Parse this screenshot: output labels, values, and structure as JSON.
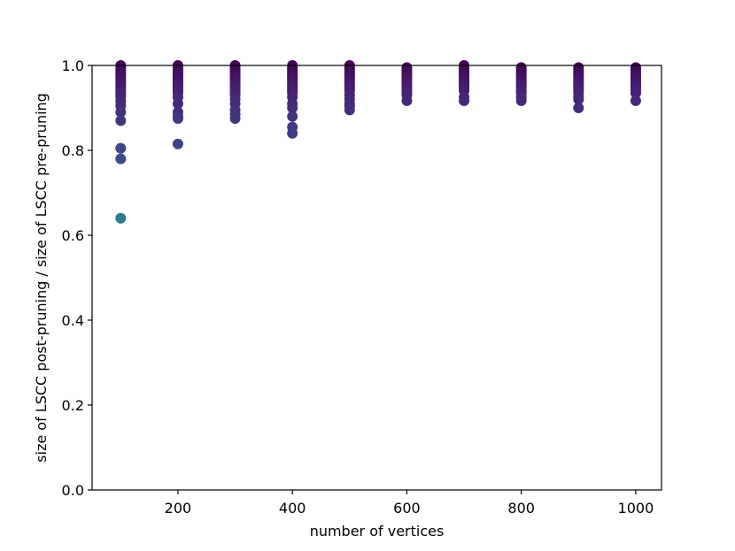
{
  "chart_data": {
    "type": "scatter",
    "title": "",
    "xlabel": "number of vertices",
    "ylabel": "size of LSCC post-pruning / size of LSCC pre-pruning",
    "xlim": [
      50,
      1045
    ],
    "ylim": [
      0.0,
      1.0
    ],
    "xticks": [
      200,
      400,
      600,
      800,
      1000
    ],
    "yticks": [
      0.0,
      0.2,
      0.4,
      0.6,
      0.8,
      1.0
    ],
    "grid": false,
    "legend": "none",
    "colormap": "viridis",
    "series": [
      {
        "x": [
          100,
          100,
          100,
          100,
          100,
          100,
          100,
          100,
          100,
          100,
          100,
          100,
          100,
          100,
          100,
          100,
          100,
          100,
          100,
          100,
          100,
          100,
          100,
          200,
          200,
          200,
          200,
          200,
          200,
          200,
          200,
          200,
          200,
          200,
          200,
          200,
          200,
          200,
          200,
          200,
          200,
          200,
          200,
          300,
          300,
          300,
          300,
          300,
          300,
          300,
          300,
          300,
          300,
          300,
          300,
          300,
          300,
          300,
          300,
          300,
          300,
          300,
          300,
          400,
          400,
          400,
          400,
          400,
          400,
          400,
          400,
          400,
          400,
          400,
          400,
          400,
          400,
          400,
          400,
          400,
          400,
          400,
          400,
          500,
          500,
          500,
          500,
          500,
          500,
          500,
          500,
          500,
          500,
          500,
          500,
          500,
          500,
          500,
          500,
          500,
          500,
          600,
          600,
          600,
          600,
          600,
          600,
          600,
          600,
          600,
          600,
          600,
          600,
          600,
          600,
          600,
          700,
          700,
          700,
          700,
          700,
          700,
          700,
          700,
          700,
          700,
          700,
          700,
          700,
          700,
          700,
          800,
          800,
          800,
          800,
          800,
          800,
          800,
          800,
          800,
          800,
          800,
          800,
          800,
          800,
          800,
          900,
          900,
          900,
          900,
          900,
          900,
          900,
          900,
          900,
          900,
          900,
          900,
          900,
          900,
          900,
          900,
          1000,
          1000,
          1000,
          1000,
          1000,
          1000,
          1000,
          1000,
          1000,
          1000,
          1000,
          1000,
          1000,
          1000
        ],
        "y": [
          1.0,
          0.995,
          0.99,
          0.985,
          0.98,
          0.975,
          0.97,
          0.965,
          0.96,
          0.955,
          0.95,
          0.945,
          0.94,
          0.935,
          0.93,
          0.925,
          0.915,
          0.905,
          0.89,
          0.87,
          0.805,
          0.78,
          0.64,
          1.0,
          0.995,
          0.99,
          0.985,
          0.98,
          0.975,
          0.97,
          0.965,
          0.96,
          0.955,
          0.95,
          0.945,
          0.94,
          0.935,
          0.925,
          0.91,
          0.89,
          0.88,
          0.875,
          0.815,
          1.0,
          0.995,
          0.99,
          0.985,
          0.98,
          0.975,
          0.97,
          0.965,
          0.96,
          0.955,
          0.95,
          0.945,
          0.94,
          0.935,
          0.93,
          0.92,
          0.91,
          0.895,
          0.885,
          0.875,
          1.0,
          0.995,
          0.99,
          0.985,
          0.98,
          0.975,
          0.97,
          0.965,
          0.96,
          0.955,
          0.95,
          0.945,
          0.94,
          0.935,
          0.925,
          0.91,
          0.88,
          0.855,
          0.84,
          0.9,
          1.0,
          0.995,
          0.99,
          0.985,
          0.98,
          0.975,
          0.97,
          0.965,
          0.96,
          0.955,
          0.95,
          0.945,
          0.94,
          0.93,
          0.92,
          0.91,
          0.905,
          0.895,
          0.995,
          0.99,
          0.985,
          0.98,
          0.975,
          0.97,
          0.965,
          0.96,
          0.955,
          0.95,
          0.945,
          0.94,
          0.935,
          0.93,
          0.917,
          1.0,
          0.995,
          0.99,
          0.985,
          0.98,
          0.975,
          0.97,
          0.965,
          0.96,
          0.955,
          0.95,
          0.945,
          0.94,
          0.925,
          0.917,
          0.995,
          0.99,
          0.985,
          0.98,
          0.975,
          0.97,
          0.965,
          0.96,
          0.955,
          0.95,
          0.945,
          0.94,
          0.935,
          0.925,
          0.917,
          0.995,
          0.99,
          0.985,
          0.98,
          0.975,
          0.97,
          0.965,
          0.96,
          0.955,
          0.95,
          0.945,
          0.94,
          0.935,
          0.925,
          0.92,
          0.9,
          0.995,
          0.99,
          0.985,
          0.98,
          0.975,
          0.97,
          0.965,
          0.96,
          0.955,
          0.95,
          0.945,
          0.94,
          0.935,
          0.917
        ]
      }
    ]
  }
}
